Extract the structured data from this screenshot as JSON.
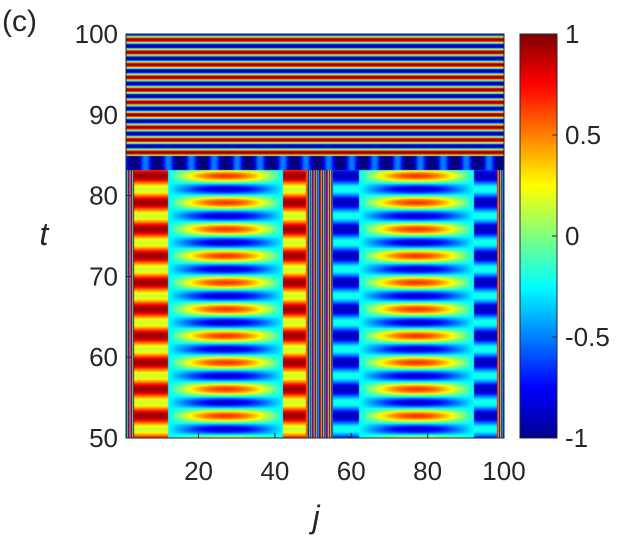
{
  "chart_data": {
    "type": "heatmap",
    "panel_label": "(c)",
    "xlabel": "j",
    "ylabel": "t",
    "xlim": [
      1,
      100
    ],
    "ylim": [
      50,
      100
    ],
    "x_ticks": [
      20,
      40,
      60,
      80,
      100
    ],
    "x_tick_labels": [
      "20",
      "40",
      "60",
      "80",
      "100"
    ],
    "y_ticks": [
      50,
      60,
      70,
      80,
      90,
      100
    ],
    "y_tick_labels": [
      "50",
      "60",
      "70",
      "80",
      "90",
      "100"
    ],
    "colorbar": {
      "colormap": "jet",
      "clim": [
        -1,
        1
      ],
      "ticks": [
        1,
        0.5,
        0,
        -0.5,
        -1
      ],
      "tick_labels": [
        "1",
        "0.5",
        "0",
        "-0.5",
        "-1"
      ]
    },
    "transition_time": 85,
    "regions": [
      {
        "j_range": [
          1,
          2
        ],
        "pattern": "thin-stripes"
      },
      {
        "j_range": [
          3,
          11
        ],
        "pattern": "red-oscillating"
      },
      {
        "j_range": [
          12,
          41
        ],
        "pattern": "ellipse-oscillating"
      },
      {
        "j_range": [
          42,
          47
        ],
        "pattern": "red-oscillating"
      },
      {
        "j_range": [
          48,
          54
        ],
        "pattern": "thin-stripes"
      },
      {
        "j_range": [
          55,
          61
        ],
        "pattern": "blue-oscillating"
      },
      {
        "j_range": [
          62,
          91
        ],
        "pattern": "ellipse-oscillating"
      },
      {
        "j_range": [
          92,
          97
        ],
        "pattern": "blue-oscillating"
      },
      {
        "j_range": [
          98,
          100
        ],
        "pattern": "thin-stripes"
      }
    ],
    "upper_pattern": "horizontal-bands",
    "grid": false,
    "legend": "none"
  }
}
